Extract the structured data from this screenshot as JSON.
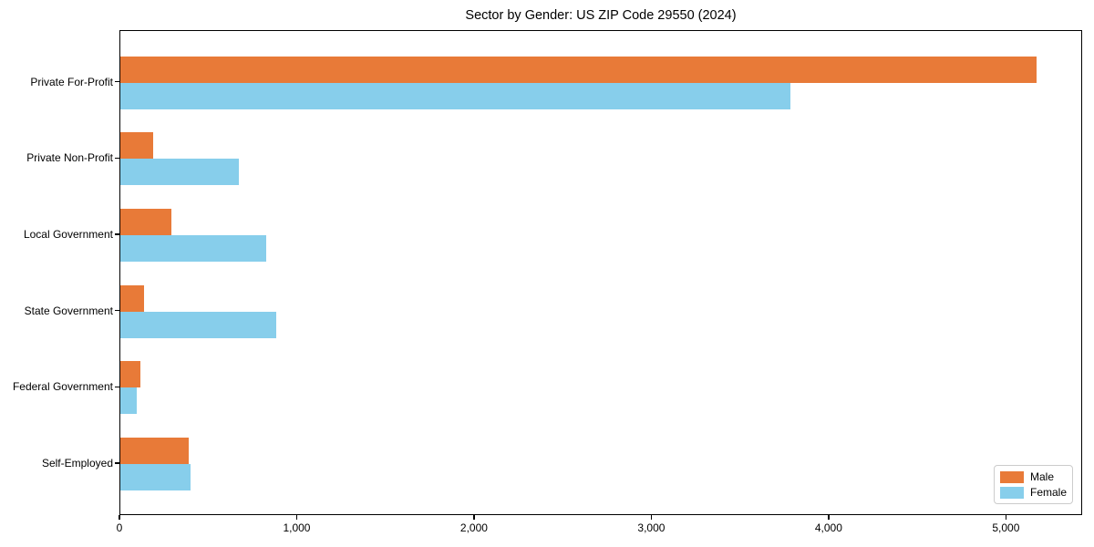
{
  "chart_data": {
    "type": "bar",
    "orientation": "horizontal",
    "title": "Sector by Gender: US ZIP Code 29550 (2024)",
    "categories": [
      "Private For-Profit",
      "Private Non-Profit",
      "Local Government",
      "State Government",
      "Federal Government",
      "Self-Employed"
    ],
    "series": [
      {
        "name": "Male",
        "color": "#E87A38",
        "values": [
          5165,
          185,
          289,
          134,
          113,
          386
        ]
      },
      {
        "name": "Female",
        "color": "#87CEEB",
        "values": [
          3778,
          670,
          821,
          878,
          93,
          395
        ]
      }
    ],
    "xlabel": "",
    "ylabel": "",
    "xlim": [
      0,
      5430
    ],
    "xticks": [
      {
        "value": 0,
        "label": "0"
      },
      {
        "value": 1000,
        "label": "1,000"
      },
      {
        "value": 2000,
        "label": "2,000"
      },
      {
        "value": 3000,
        "label": "3,000"
      },
      {
        "value": 4000,
        "label": "4,000"
      },
      {
        "value": 5000,
        "label": "5,000"
      }
    ],
    "grid": false,
    "legend": {
      "position": "lower right"
    }
  }
}
